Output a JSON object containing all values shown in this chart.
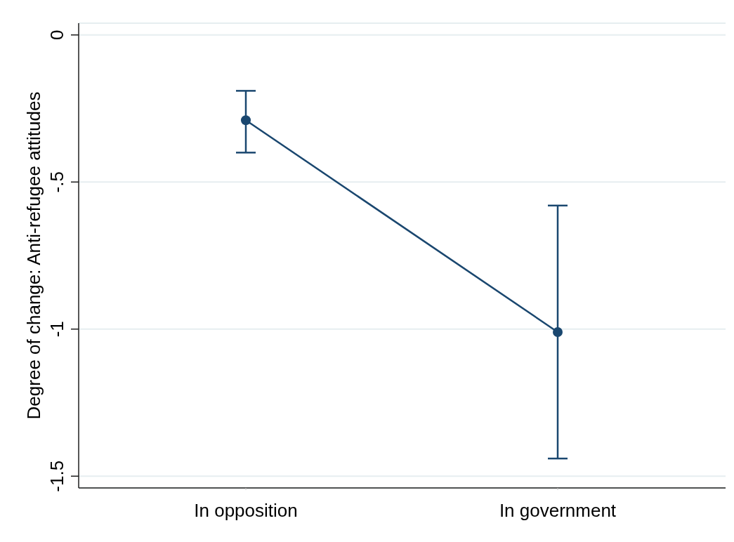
{
  "chart_data": {
    "type": "line",
    "ylabel": "Degree of change: Anti-refugee attitudes",
    "categories": [
      "In opposition",
      "In government"
    ],
    "ylim": [
      -1.54,
      0.04
    ],
    "yticks": [
      0,
      {
        "value": -0.5,
        "label": "-.5"
      },
      -1,
      -1.5
    ],
    "series": [
      {
        "color": "#1a476f",
        "values": [
          -0.29,
          -1.01
        ],
        "errors": [
          [
            -0.4,
            -0.19
          ],
          [
            -1.44,
            -0.58
          ]
        ]
      }
    ],
    "marker": "circle",
    "line_style": "solid",
    "grid": "y"
  }
}
